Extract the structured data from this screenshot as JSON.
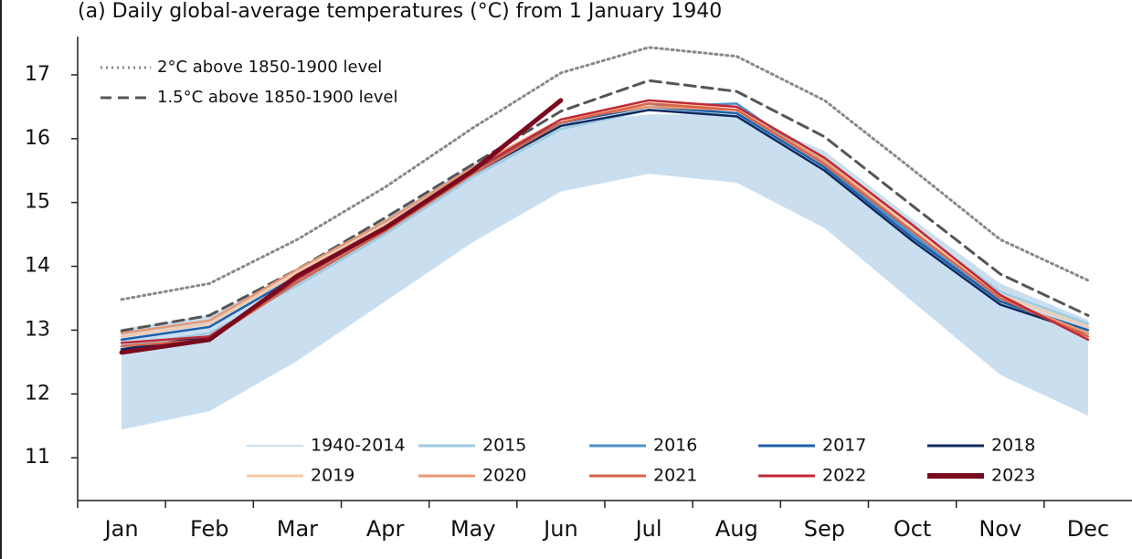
{
  "chart_data": {
    "type": "line",
    "title": "(a) Daily global-average temperatures (°C) from 1 January 1940",
    "categories": [
      "Jan",
      "Feb",
      "Mar",
      "Apr",
      "May",
      "Jun",
      "Jul",
      "Aug",
      "Sep",
      "Oct",
      "Nov",
      "Dec"
    ],
    "ylim": [
      10.33,
      17.6
    ],
    "yticks": [
      11,
      12,
      13,
      14,
      15,
      16,
      17
    ],
    "band": {
      "name": "1940-2014",
      "color": "#c9dff0",
      "low": [
        11.44,
        11.73,
        12.52,
        13.45,
        14.38,
        15.17,
        15.45,
        15.31,
        14.6,
        13.45,
        12.3,
        11.66
      ],
      "high": [
        13.02,
        13.23,
        13.88,
        14.74,
        15.6,
        16.24,
        16.38,
        16.38,
        15.81,
        14.74,
        13.73,
        13.16
      ]
    },
    "reference_lines": [
      {
        "name": "2°C above 1850-1900 level",
        "color": "#888888",
        "style": "dotted",
        "values": [
          13.48,
          13.73,
          14.42,
          15.24,
          16.17,
          17.03,
          17.43,
          17.29,
          16.6,
          15.52,
          14.42,
          13.78
        ]
      },
      {
        "name": "1.5°C above 1850-1900 level",
        "color": "#555555",
        "style": "dashed",
        "values": [
          12.99,
          13.23,
          13.95,
          14.76,
          15.6,
          16.43,
          16.91,
          16.74,
          16.03,
          14.95,
          13.88,
          13.23
        ]
      }
    ],
    "series": [
      {
        "name": "2015",
        "color": "#9ecae1",
        "values": [
          12.75,
          12.95,
          13.7,
          14.5,
          15.4,
          16.15,
          16.45,
          16.4,
          15.6,
          14.6,
          13.6,
          13.1
        ]
      },
      {
        "name": "2016",
        "color": "#4a90c8",
        "values": [
          12.95,
          13.15,
          13.95,
          14.7,
          15.55,
          16.25,
          16.5,
          16.55,
          15.6,
          14.5,
          13.45,
          12.95
        ]
      },
      {
        "name": "2017",
        "color": "#1f5fa8",
        "values": [
          12.85,
          13.05,
          13.85,
          14.6,
          15.5,
          16.25,
          16.5,
          16.4,
          15.55,
          14.45,
          13.45,
          13.0
        ]
      },
      {
        "name": "2018",
        "color": "#0d2a5e",
        "values": [
          12.7,
          12.9,
          13.75,
          14.55,
          15.45,
          16.2,
          16.45,
          16.35,
          15.5,
          14.4,
          13.4,
          12.95
        ]
      },
      {
        "name": "2019",
        "color": "#f7c9a8",
        "values": [
          12.9,
          13.1,
          13.9,
          14.65,
          15.5,
          16.3,
          16.55,
          16.5,
          15.7,
          14.6,
          13.55,
          13.05
        ]
      },
      {
        "name": "2020",
        "color": "#eb9872",
        "values": [
          12.95,
          13.15,
          13.95,
          14.7,
          15.55,
          16.3,
          16.5,
          16.45,
          15.65,
          14.55,
          13.5,
          12.95
        ]
      },
      {
        "name": "2021",
        "color": "#d9644a",
        "values": [
          12.75,
          12.85,
          13.75,
          14.55,
          15.45,
          16.25,
          16.55,
          16.45,
          15.6,
          14.55,
          13.5,
          12.9
        ]
      },
      {
        "name": "2022",
        "color": "#c02a37",
        "values": [
          12.8,
          12.9,
          13.8,
          14.6,
          15.5,
          16.3,
          16.6,
          16.5,
          15.7,
          14.65,
          13.55,
          12.85
        ]
      },
      {
        "name": "2023",
        "color": "#7a0a1f",
        "values": [
          12.65,
          12.85,
          13.85,
          14.6,
          15.5,
          16.6,
          null,
          null,
          null,
          null,
          null,
          null
        ]
      }
    ]
  }
}
